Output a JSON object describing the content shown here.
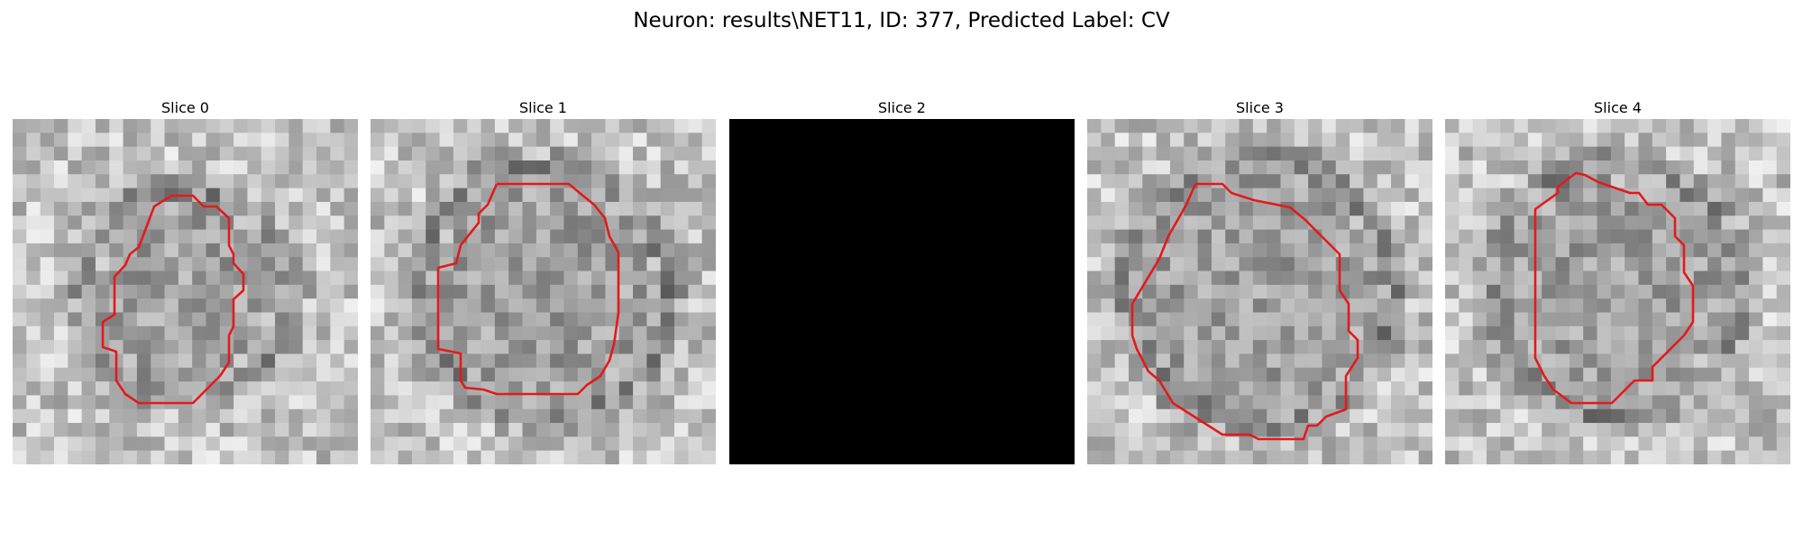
{
  "figure": {
    "title": "Neuron: results\\NET11, ID: 377, Predicted Label: CV"
  },
  "panels": [
    {
      "label": "Slice 0",
      "image": "grayscale EM patch",
      "has_contour": true
    },
    {
      "label": "Slice 1",
      "image": "grayscale EM patch",
      "has_contour": true
    },
    {
      "label": "Slice 2",
      "image": "blank black patch",
      "has_contour": false
    },
    {
      "label": "Slice 3",
      "image": "grayscale EM patch",
      "has_contour": true
    },
    {
      "label": "Slice 4",
      "image": "grayscale EM patch",
      "has_contour": true
    }
  ],
  "colors": {
    "contour": "#e31a1c",
    "background": "#ffffff",
    "blank_slice": "#000000"
  }
}
